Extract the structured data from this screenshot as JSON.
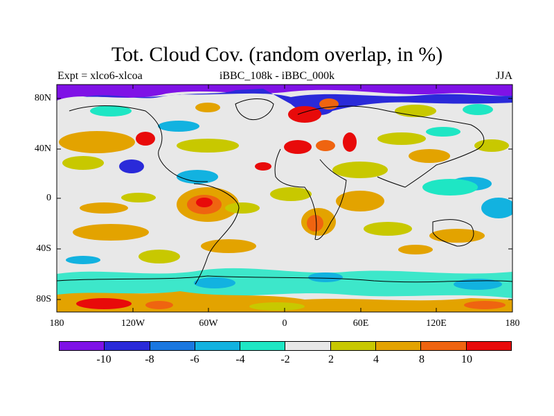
{
  "title": "Tot. Cloud Cov. (random overlap, in %)",
  "left_subtitle": "Expt = xlco6-xlcoa",
  "center_subtitle": "iBBC_108k - iBBC_000k",
  "right_subtitle": "JJA",
  "lat_labels": [
    "80N",
    "40N",
    "0",
    "40S",
    "80S"
  ],
  "lon_labels": [
    "180",
    "120W",
    "60W",
    "0",
    "60E",
    "120E",
    "180"
  ],
  "colorbar": {
    "colors": [
      "#7f12e6",
      "#2a2ad9",
      "#1a78e0",
      "#12b2e0",
      "#1ee6c4",
      "#e8e8e8",
      "#c8c800",
      "#e3a300",
      "#ef6410",
      "#e80a0a"
    ],
    "labels": [
      "-10",
      "-8",
      "-6",
      "-4",
      "-2",
      "2",
      "4",
      "8",
      "10"
    ]
  }
}
